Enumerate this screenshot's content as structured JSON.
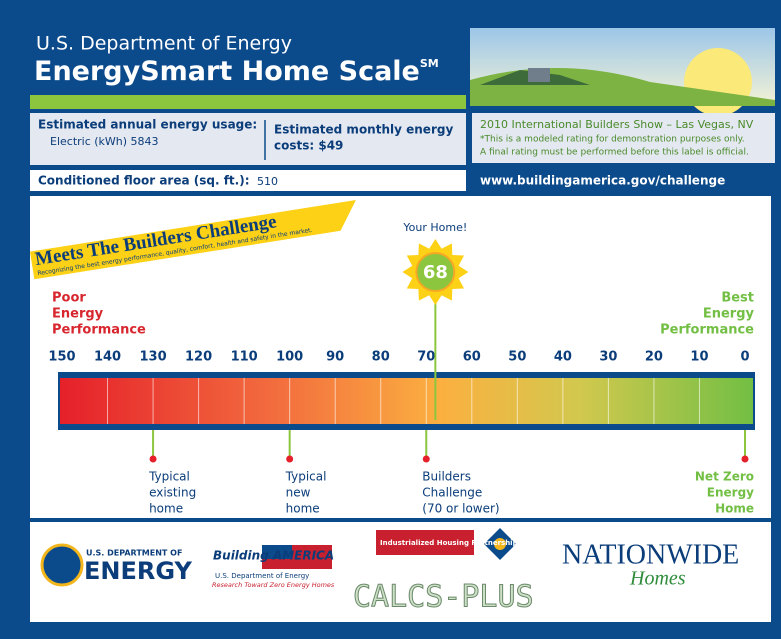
{
  "header": {
    "agency": "U.S. Department of Energy",
    "title": "EnergySmart Home Scale",
    "mark": "SM"
  },
  "usage": {
    "label": "Estimated annual energy usage:",
    "detail": "Electric (kWh) 5843"
  },
  "monthly": {
    "lines": [
      "Estimated monthly energy",
      "costs: $49"
    ]
  },
  "floor": {
    "label": "Conditioned floor area (sq. ft.):",
    "value": "510"
  },
  "notice": {
    "lines": [
      "2010 International Builders Show – Las Vegas, NV",
      "*This is a modeled rating for demonstration purposes only.",
      "A final rating must be performed before this label is official."
    ]
  },
  "url": "www.buildingamerica.gov/challenge",
  "banner": {
    "title": "Meets The Builders Challenge",
    "subtitle": "Recognizing the best energy performance, quality, comfort, health and safety in the market."
  },
  "scale": {
    "lim": [
      150,
      0
    ],
    "ticks": [
      150,
      140,
      130,
      120,
      110,
      100,
      90,
      80,
      70,
      60,
      50,
      40,
      30,
      20,
      10,
      0
    ],
    "poor": [
      "Poor",
      "Energy",
      "Performance"
    ],
    "best": [
      "Best",
      "Energy",
      "Performance"
    ],
    "your_home": {
      "label": "Your Home!",
      "value": 68
    },
    "markers": [
      {
        "value": 130,
        "lines": [
          "Typical",
          "existing",
          "home"
        ]
      },
      {
        "value": 100,
        "lines": [
          "Typical",
          "new",
          "home"
        ]
      },
      {
        "value": 70,
        "lines": [
          "Builders",
          "Challenge",
          "(70 or lower)"
        ]
      },
      {
        "value": 0,
        "lines": [
          "Net Zero",
          "Energy",
          "Home"
        ]
      }
    ]
  },
  "logos": {
    "doe_small": "U.S. DEPARTMENT OF",
    "doe_big": "ENERGY",
    "ba_title": "Building AMERICA",
    "ba_sub": "U.S. Department of Energy",
    "ba_tag": "Research Toward Zero Energy Homes",
    "ihp": "Industrialized Housing Partnership",
    "calcs": "CALCS-PLUS",
    "nw": "NATIONWIDE",
    "nw_sub": "Homes"
  }
}
